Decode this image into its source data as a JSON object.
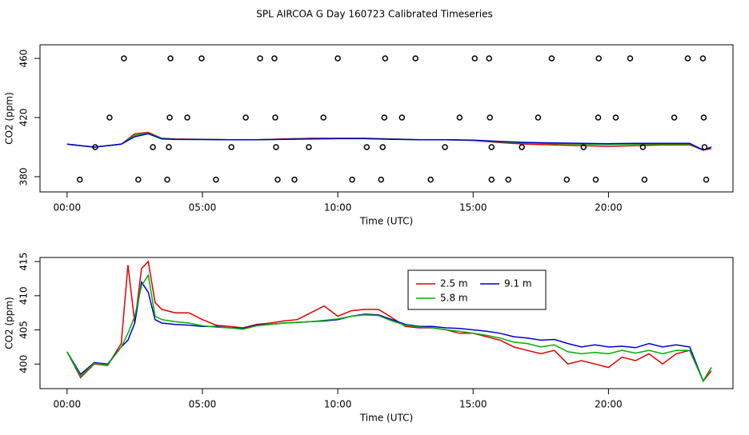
{
  "chart_data": [
    {
      "type": "line",
      "title": "SPL AIRCOA G  Day 160723  Calibrated Timeseries",
      "xlabel": "Time (UTC)",
      "ylabel": "CO2 (ppm)",
      "xlim": [
        -1,
        24.6
      ],
      "ylim": [
        369.7,
        469.2
      ],
      "xticks": [
        {
          "value": 0,
          "label": "00:00"
        },
        {
          "value": 5,
          "label": "05:00"
        },
        {
          "value": 10,
          "label": "10:00"
        },
        {
          "value": 15,
          "label": "15:00"
        },
        {
          "value": 20,
          "label": "20:00"
        }
      ],
      "yticks": [
        380,
        420,
        460
      ],
      "x": [
        0,
        1,
        2,
        2.5,
        3,
        3.5,
        4,
        5,
        6,
        7,
        8,
        9,
        10,
        11,
        12,
        13,
        14,
        15,
        16,
        17,
        18,
        19,
        20,
        21,
        22,
        23,
        23.5,
        23.8
      ],
      "series": [
        {
          "color": "#e00000",
          "values": [
            402,
            400,
            402,
            409,
            410,
            406,
            405.5,
            405.3,
            405,
            405,
            405.5,
            406,
            406,
            406,
            405.5,
            405,
            405,
            404.5,
            403,
            402,
            401.5,
            401,
            400.5,
            401,
            401.5,
            401.5,
            398,
            399
          ]
        },
        {
          "color": "#00b000",
          "values": [
            402,
            400,
            402,
            408,
            409.5,
            406,
            405.3,
            405.2,
            405,
            405,
            405.3,
            405.6,
            405.8,
            405.8,
            405.4,
            405,
            405,
            404.6,
            403.5,
            402.8,
            402.3,
            402,
            401.8,
            402,
            402,
            402,
            398,
            400
          ]
        },
        {
          "color": "#0000d0",
          "values": [
            402,
            400,
            402,
            407,
            409,
            405.5,
            405.2,
            405.1,
            405,
            405,
            405.3,
            405.5,
            405.7,
            405.7,
            405.3,
            405,
            405,
            404.7,
            403.8,
            403.2,
            402.8,
            402.5,
            402.3,
            402.5,
            402.5,
            402.5,
            398,
            400
          ]
        },
        {
          "marker": "circle",
          "color": "#000000",
          "x": [
            2.1,
            3.82,
            4.97,
            7.13,
            7.66,
            10.0,
            11.75,
            12.87,
            15.06,
            15.59,
            17.9,
            19.64,
            20.8,
            22.93,
            23.49,
            1.57,
            3.79,
            4.44,
            6.6,
            7.69,
            9.47,
            11.72,
            12.37,
            14.5,
            15.62,
            17.4,
            19.62,
            20.27,
            22.43,
            23.52,
            1.04,
            3.17,
            3.76,
            6.07,
            7.72,
            8.93,
            11.07,
            11.66,
            13.96,
            15.68,
            16.8,
            19.08,
            21.27,
            23.55,
            0.47,
            2.63,
            3.7,
            5.5,
            7.78,
            8.4,
            10.53,
            11.6,
            13.43,
            15.68,
            16.3,
            18.46,
            19.53,
            21.33,
            23.61
          ],
          "values": [
            460,
            460,
            460,
            460,
            460,
            460,
            460,
            460,
            460,
            460,
            460,
            460,
            460,
            460,
            460,
            420,
            420,
            420,
            420,
            420,
            420,
            420,
            420,
            420,
            420,
            420,
            420,
            420,
            420,
            420,
            400,
            400,
            400,
            400,
            400,
            400,
            400,
            400,
            400,
            400,
            400,
            400,
            400,
            400,
            378,
            378,
            378,
            378,
            378,
            378,
            378,
            378,
            378,
            378,
            378,
            378,
            378,
            378,
            378
          ]
        }
      ]
    },
    {
      "type": "line",
      "xlabel": "Time (UTC)",
      "ylabel": "CO2 (ppm)",
      "xlim": [
        -1,
        24.6
      ],
      "ylim": [
        396.4,
        415.6
      ],
      "xticks": [
        {
          "value": 0,
          "label": "00:00"
        },
        {
          "value": 5,
          "label": "05:00"
        },
        {
          "value": 10,
          "label": "10:00"
        },
        {
          "value": 15,
          "label": "15:00"
        },
        {
          "value": 20,
          "label": "20:00"
        }
      ],
      "yticks": [
        400,
        405,
        410,
        415
      ],
      "x": [
        0,
        0.5,
        1,
        1.5,
        2,
        2.25,
        2.5,
        2.75,
        3,
        3.25,
        3.5,
        4,
        4.5,
        5,
        5.5,
        6,
        6.5,
        7,
        7.5,
        8,
        8.5,
        9,
        9.5,
        10,
        10.5,
        11,
        11.5,
        12,
        12.5,
        13,
        13.5,
        14,
        14.5,
        15,
        15.5,
        16,
        16.5,
        17,
        17.5,
        18,
        18.5,
        19,
        19.5,
        20,
        20.5,
        21,
        21.5,
        22,
        22.5,
        23,
        23.5,
        23.8
      ],
      "series": [
        {
          "name": "2.5 m",
          "color": "#e00000",
          "values": [
            401.8,
            398,
            400,
            399.8,
            403,
            414.5,
            406,
            414,
            415,
            409,
            408,
            407.5,
            407.5,
            406.5,
            405.7,
            405.5,
            405.3,
            405.8,
            406,
            406.3,
            406.5,
            407.5,
            408.5,
            407,
            407.8,
            408,
            408,
            406.8,
            405.5,
            405.3,
            405.3,
            405,
            404.5,
            404.5,
            404,
            403.5,
            402.5,
            402,
            401.5,
            402,
            400,
            400.5,
            400,
            399.5,
            401,
            400.5,
            401.5,
            400,
            401.5,
            402,
            397.5,
            399
          ]
        },
        {
          "name": "9.1 m",
          "color": "#0000d0",
          "values": [
            401.8,
            398.5,
            400.2,
            400,
            402.5,
            403.5,
            406,
            412,
            410.5,
            406.5,
            406,
            405.8,
            405.7,
            405.5,
            405.5,
            405.3,
            405.2,
            405.7,
            405.8,
            406,
            406.1,
            406.2,
            406.3,
            406.5,
            407,
            407.3,
            407.2,
            406.5,
            405.8,
            405.5,
            405.5,
            405.3,
            405.2,
            405,
            404.8,
            404.5,
            404,
            403.8,
            403.5,
            403.6,
            403,
            402.5,
            402.8,
            402.5,
            402.6,
            402.4,
            403,
            402.5,
            402.8,
            402.5,
            397.5,
            399.5
          ]
        },
        {
          "name": "5.8 m",
          "color": "#00b000",
          "values": [
            401.8,
            398.2,
            400.1,
            399.9,
            402.5,
            404.5,
            407,
            411.5,
            413,
            407,
            406.5,
            406.2,
            406,
            405.6,
            405.4,
            405.3,
            405.1,
            405.6,
            405.8,
            406,
            406.1,
            406.2,
            406.4,
            406.6,
            407,
            407.2,
            407.1,
            406.3,
            405.7,
            405.4,
            405.3,
            405,
            404.8,
            404.5,
            404.2,
            403.8,
            403.2,
            403,
            402.5,
            402.8,
            401.8,
            401.5,
            401.7,
            401.5,
            402,
            401.6,
            402,
            401.5,
            402,
            402,
            397.5,
            399.5
          ]
        }
      ]
    }
  ]
}
